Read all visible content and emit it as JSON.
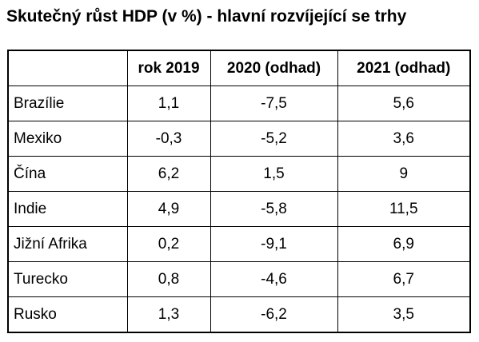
{
  "title": "Skutečný růst HDP (v %) - hlavní rozvíjející se trhy",
  "table": {
    "headers": [
      "",
      "rok 2019",
      "2020 (odhad)",
      "2021 (odhad)"
    ],
    "rows": [
      {
        "country": "Brazílie",
        "values": [
          "1,1",
          "-7,5",
          "5,6"
        ]
      },
      {
        "country": "Mexiko",
        "values": [
          "-0,3",
          "-5,2",
          "3,6"
        ]
      },
      {
        "country": "Čína",
        "values": [
          "6,2",
          "1,5",
          "9"
        ]
      },
      {
        "country": "Indie",
        "values": [
          "4,9",
          "-5,8",
          "11,5"
        ]
      },
      {
        "country": "Jižní Afrika",
        "values": [
          "0,2",
          "-9,1",
          "6,9"
        ]
      },
      {
        "country": "Turecko",
        "values": [
          "0,8",
          "-4,6",
          "6,7"
        ]
      },
      {
        "country": "Rusko",
        "values": [
          "1,3",
          "-6,2",
          "3,5"
        ]
      }
    ]
  }
}
